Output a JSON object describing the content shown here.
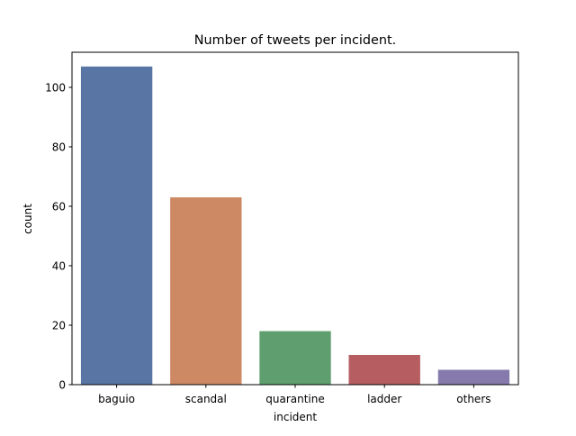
{
  "chart_data": {
    "type": "bar",
    "title": "Number of tweets per incident.",
    "xlabel": "incident",
    "ylabel": "count",
    "categories": [
      "baguio",
      "scandal",
      "quarantine",
      "ladder",
      "others"
    ],
    "values": [
      107,
      63,
      18,
      10,
      5
    ],
    "colors": [
      "#5975a4",
      "#cc8963",
      "#5f9e6e",
      "#b55d60",
      "#857aab"
    ],
    "ylim": [
      0,
      112
    ],
    "yticks": [
      0,
      20,
      40,
      60,
      80,
      100
    ],
    "grid": false
  }
}
